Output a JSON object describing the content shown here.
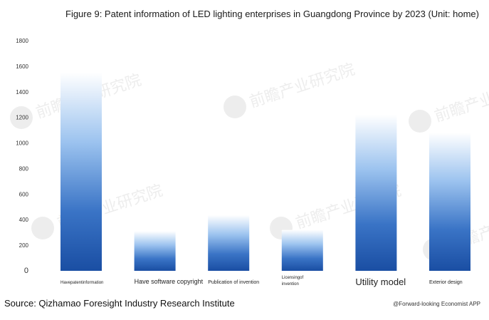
{
  "chart_data": {
    "type": "bar",
    "title": "Figure 9: Patent information of LED lighting enterprises in Guangdong Province by 2023 (Unit: home)",
    "categories": [
      "Havepatentinformation",
      "Have software copyright",
      "Publication of invention",
      "Licensing of invention",
      "Utility model",
      "Exterior design"
    ],
    "category_lines": [
      [
        "Havepatentinformation"
      ],
      [
        "Have software copyright"
      ],
      [
        "Publication of invention"
      ],
      [
        "Licensingof",
        "invention"
      ],
      [
        "Utility model"
      ],
      [
        "Exterior design"
      ]
    ],
    "values": [
      1550,
      310,
      435,
      320,
      1220,
      1080
    ],
    "ylim": [
      0,
      1800
    ],
    "yticks": [
      0,
      200,
      400,
      600,
      800,
      1000,
      1200,
      1400,
      1600,
      1800
    ],
    "xlabel": "",
    "ylabel": "",
    "grid": false,
    "bar_color_top": "#ffffff",
    "bar_color_bottom": "#1a4ea3"
  },
  "footer": {
    "source": "Source: Qizhamao Foresight Industry Research Institute",
    "credit": "@Forward-looking Economist APP"
  },
  "watermark": {
    "text": "前瞻产业研究院"
  }
}
